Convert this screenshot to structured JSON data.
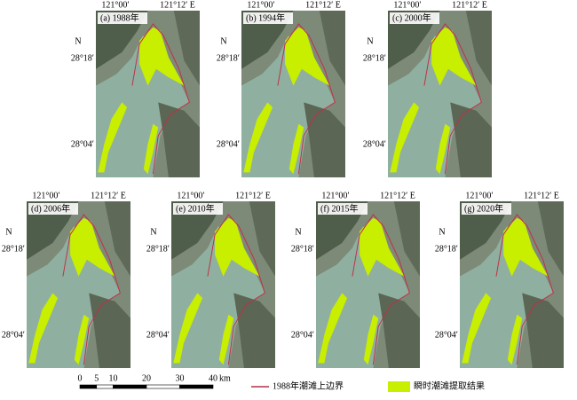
{
  "coords": {
    "lon_west": "121°00′",
    "lon_east": "121°12′ E",
    "north": "N",
    "lat_north": "28°18′",
    "lat_south": "28°04′"
  },
  "panels": [
    {
      "label": "(a) 1988年"
    },
    {
      "label": "(b) 1994年"
    },
    {
      "label": "(c) 2000年"
    },
    {
      "label": "(d) 2006年"
    },
    {
      "label": "(e) 2010年"
    },
    {
      "label": "(f) 2015年"
    },
    {
      "label": "(g) 2020年"
    }
  ],
  "scale_bar": {
    "ticks": [
      0,
      5,
      10,
      20,
      30,
      40
    ],
    "unit": "km"
  },
  "legend": {
    "boundary": "1988年潮滩上边界",
    "extraction": "瞬时潮滩提取结果"
  }
}
